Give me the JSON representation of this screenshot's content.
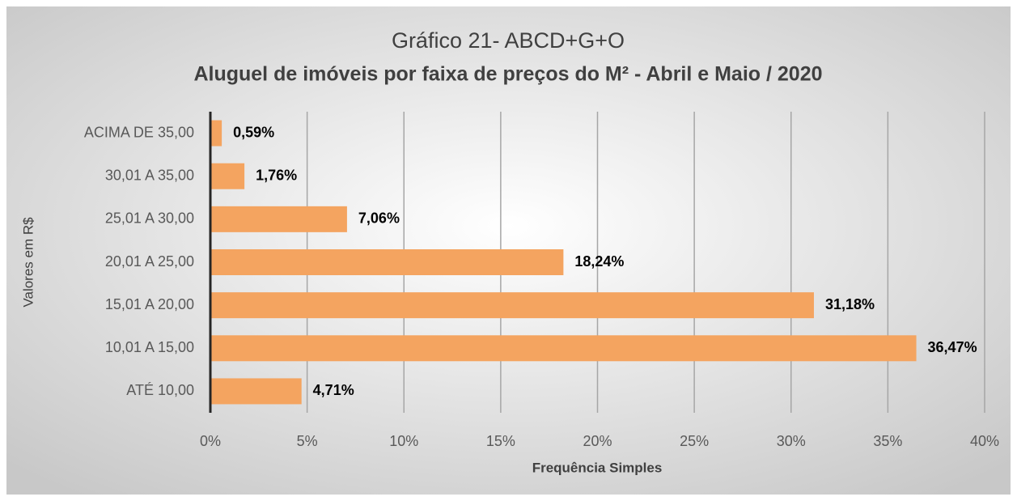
{
  "chart_data": {
    "type": "hbar",
    "title": "Gráfico 21- ABCD+G+O",
    "subtitle": "Aluguel de imóveis por faixa de preços do M² - Abril e Maio / 2020",
    "x_label": "Frequência Simples",
    "y_label": "Valores em R$",
    "categories": [
      "ACIMA DE 35,00",
      "30,01 A 35,00",
      "25,01 A 30,00",
      "20,01 A 25,00",
      "15,01 A 20,00",
      "10,01 A 15,00",
      "ATÉ 10,00"
    ],
    "values": [
      0.59,
      1.76,
      7.06,
      18.24,
      31.18,
      36.47,
      4.71
    ],
    "value_labels": [
      "0,59%",
      "1,76%",
      "7,06%",
      "18,24%",
      "31,18%",
      "36,47%",
      "4,71%"
    ],
    "color": "#f4a460",
    "xlim": [
      0,
      40
    ],
    "xticks": [
      {
        "value": 0,
        "label": "0%"
      },
      {
        "value": 5,
        "label": "5%"
      },
      {
        "value": 10,
        "label": "10%"
      },
      {
        "value": 15,
        "label": "15%"
      },
      {
        "value": 20,
        "label": "20%"
      },
      {
        "value": 25,
        "label": "25%"
      },
      {
        "value": 30,
        "label": "30%"
      },
      {
        "value": 35,
        "label": "35%"
      },
      {
        "value": 40,
        "label": "40%"
      }
    ],
    "grid": true
  }
}
